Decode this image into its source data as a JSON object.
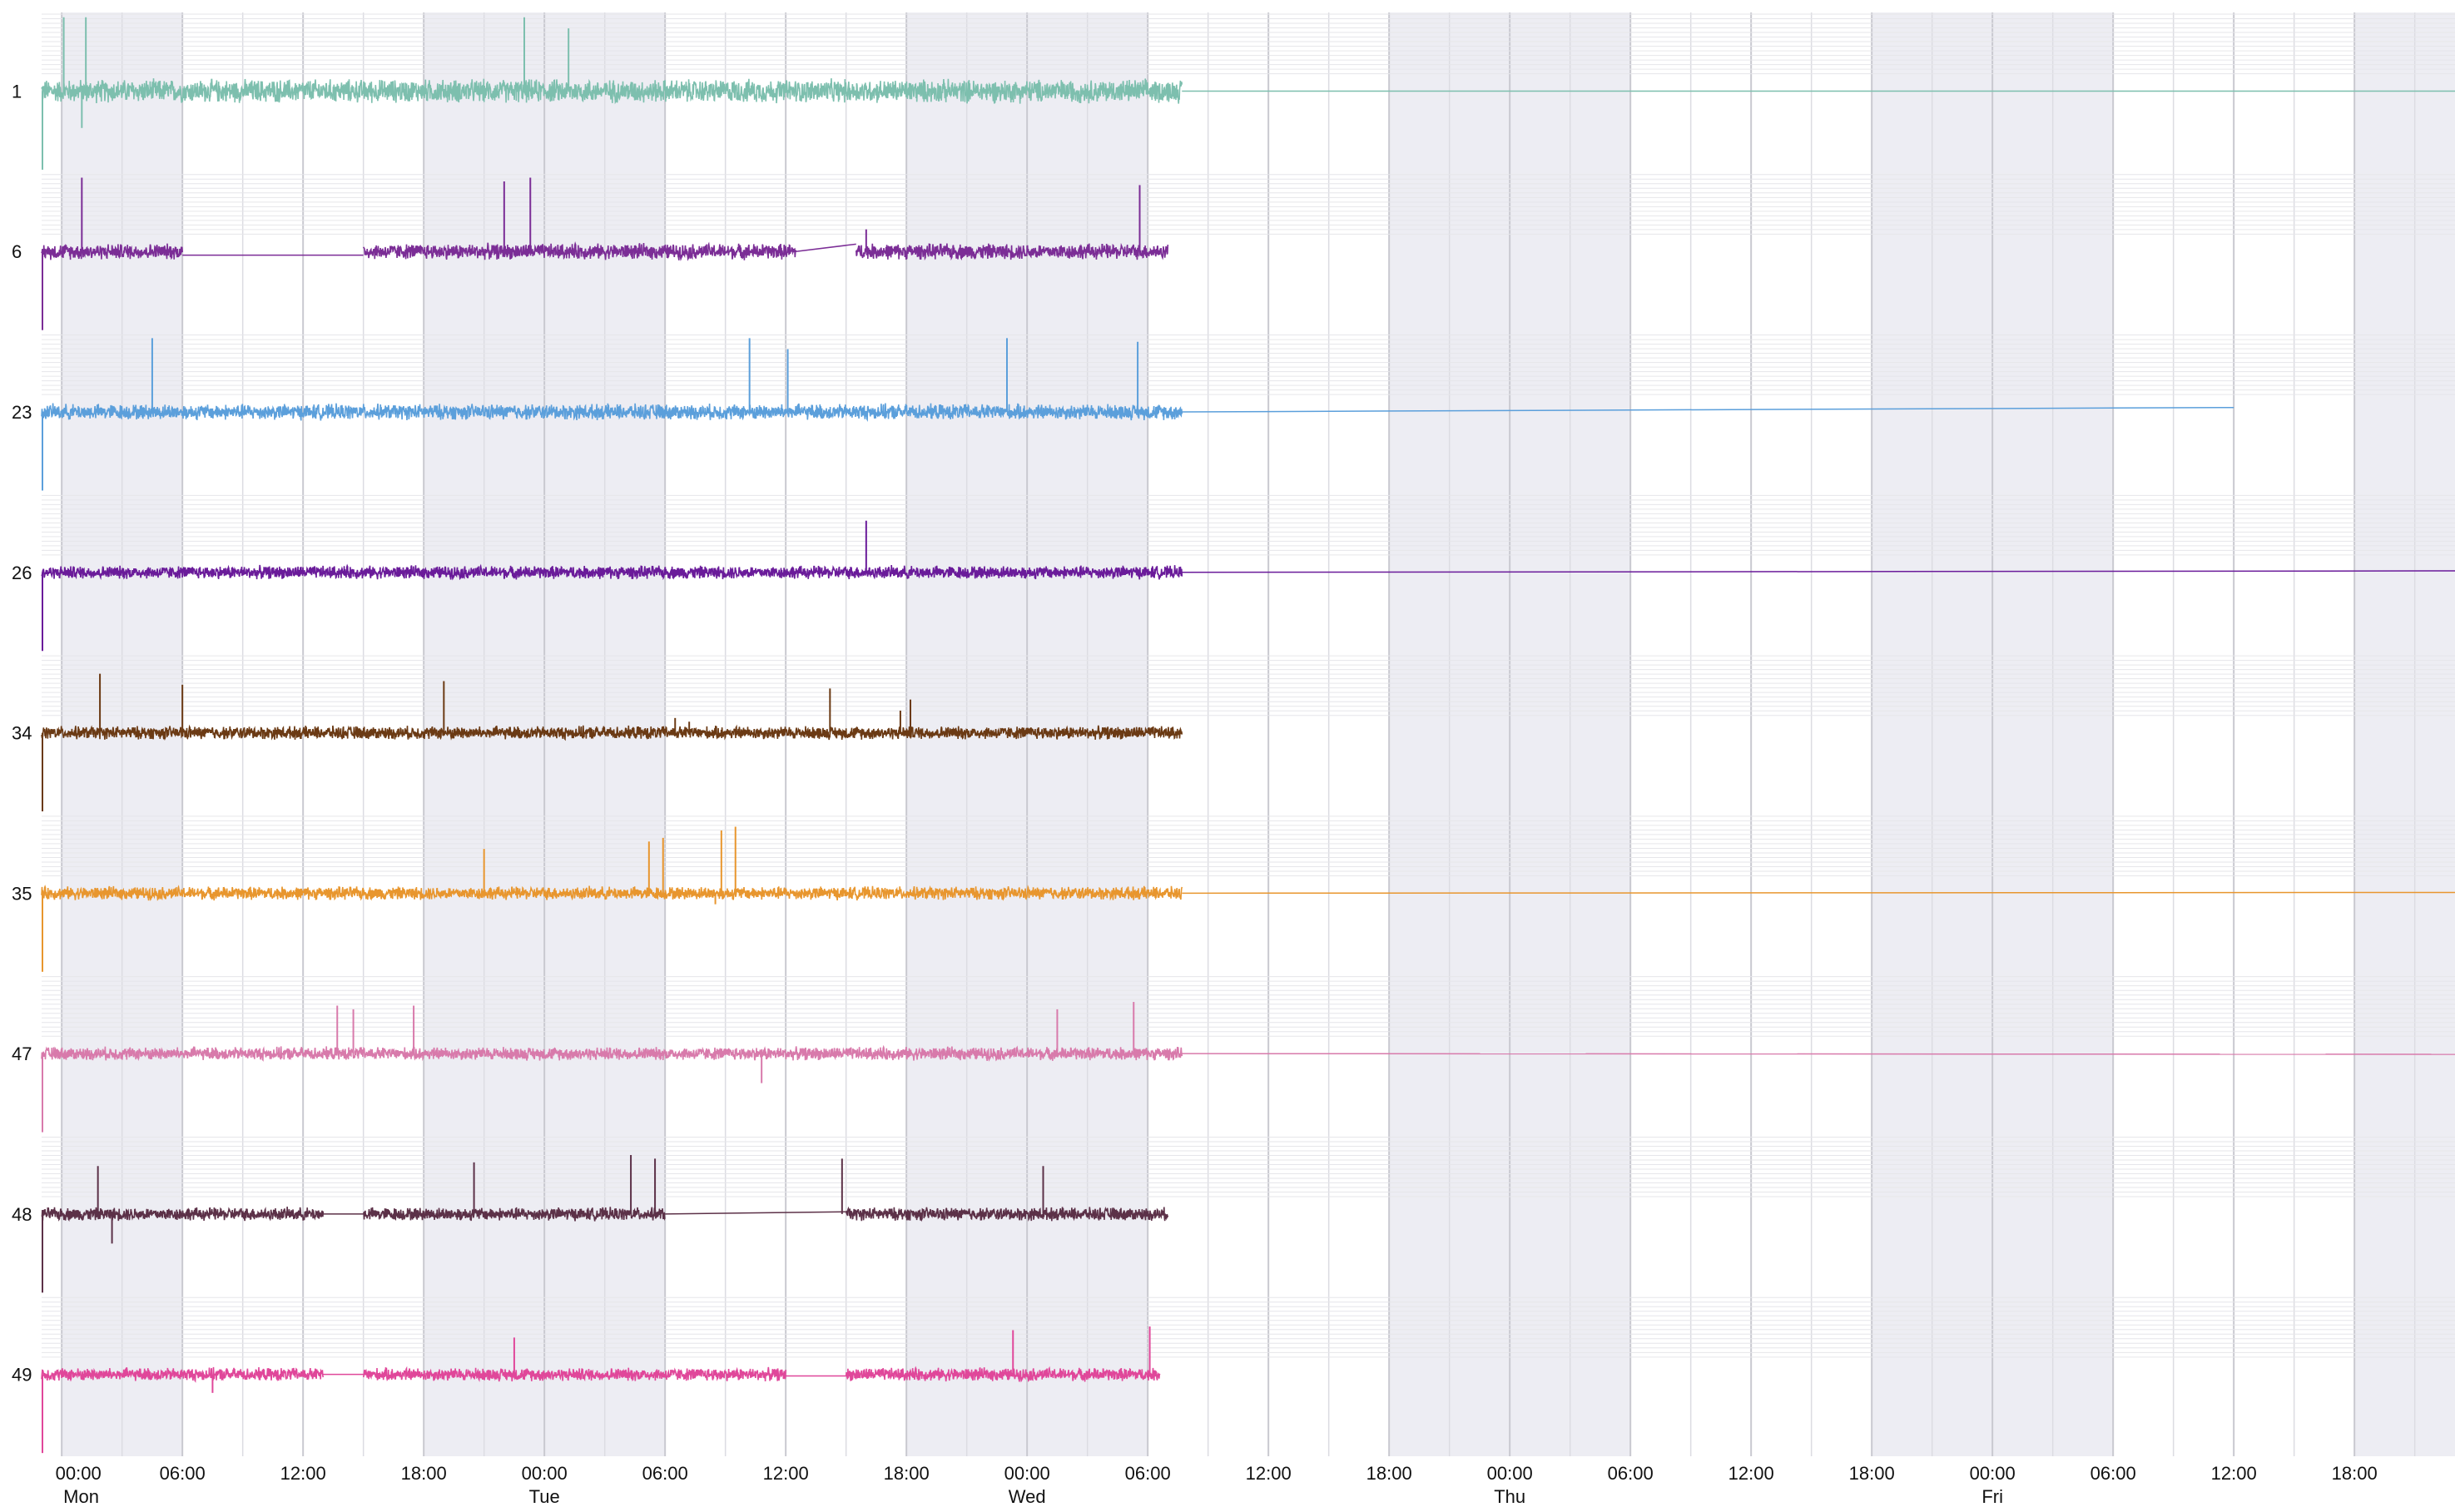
{
  "chart_data": {
    "type": "line",
    "x_range_hours": [
      -1,
      119
    ],
    "x_ticks": [
      {
        "h": 0,
        "time": "00:00",
        "day": "Mon"
      },
      {
        "h": 6,
        "time": "06:00",
        "day": ""
      },
      {
        "h": 12,
        "time": "12:00",
        "day": ""
      },
      {
        "h": 18,
        "time": "18:00",
        "day": ""
      },
      {
        "h": 24,
        "time": "00:00",
        "day": "Tue"
      },
      {
        "h": 30,
        "time": "06:00",
        "day": ""
      },
      {
        "h": 36,
        "time": "12:00",
        "day": ""
      },
      {
        "h": 42,
        "time": "18:00",
        "day": ""
      },
      {
        "h": 48,
        "time": "00:00",
        "day": "Wed"
      },
      {
        "h": 54,
        "time": "06:00",
        "day": ""
      },
      {
        "h": 60,
        "time": "12:00",
        "day": ""
      },
      {
        "h": 66,
        "time": "18:00",
        "day": ""
      },
      {
        "h": 72,
        "time": "00:00",
        "day": "Thu"
      },
      {
        "h": 78,
        "time": "06:00",
        "day": ""
      },
      {
        "h": 84,
        "time": "12:00",
        "day": ""
      },
      {
        "h": 90,
        "time": "18:00",
        "day": ""
      },
      {
        "h": 96,
        "time": "00:00",
        "day": "Fri"
      },
      {
        "h": 102,
        "time": "06:00",
        "day": ""
      },
      {
        "h": 108,
        "time": "12:00",
        "day": ""
      },
      {
        "h": 114,
        "time": "18:00",
        "day": ""
      }
    ],
    "night_bands_hours": [
      [
        0,
        6
      ],
      [
        18,
        30
      ],
      [
        42,
        54
      ],
      [
        66,
        78
      ],
      [
        90,
        102
      ],
      [
        114,
        119
      ]
    ],
    "grid": true,
    "series": [
      {
        "name": "1",
        "color": "#7dbfae",
        "noise": 0.18,
        "dense_end": 55.7,
        "segments": [
          [
            -1,
            55.7
          ]
        ],
        "gaps": [],
        "spikes": [
          [
            0.1,
            1.0
          ],
          [
            1.2,
            1.0
          ],
          [
            1.0,
            -0.5
          ],
          [
            23,
            1.0
          ],
          [
            25.2,
            0.85
          ]
        ],
        "tail": [
          55.7,
          119,
          0
        ]
      },
      {
        "name": "6",
        "color": "#7b2d96",
        "noise": 0.12,
        "dense_end": 55.0,
        "segments": [
          [
            -1,
            6
          ],
          [
            15,
            36.5
          ],
          [
            39.5,
            55
          ]
        ],
        "gaps": [
          [
            6,
            -0.05,
            15,
            -0.05
          ],
          [
            36.5,
            0.0,
            39.5,
            0.1
          ]
        ],
        "spikes": [
          [
            1,
            1.0
          ],
          [
            22,
            0.95
          ],
          [
            23.3,
            1.0
          ],
          [
            53.6,
            0.9
          ],
          [
            40,
            0.3
          ]
        ],
        "tail": null
      },
      {
        "name": "23",
        "color": "#5b9fdb",
        "noise": 0.12,
        "dense_end": 55.7,
        "segments": [
          [
            -1,
            55.7
          ]
        ],
        "gaps": [],
        "spikes": [
          [
            4.5,
            1.0
          ],
          [
            34.2,
            1.0
          ],
          [
            36.1,
            0.85
          ],
          [
            47,
            1.0
          ],
          [
            53.5,
            0.95
          ]
        ],
        "tail": [
          55.7,
          108,
          0.06
        ]
      },
      {
        "name": "26",
        "color": "#6a1b9a",
        "noise": 0.1,
        "dense_end": 55.7,
        "segments": [
          [
            -1,
            55.7
          ]
        ],
        "gaps": [],
        "spikes": [
          [
            40,
            0.7
          ]
        ],
        "tail": [
          55.7,
          119,
          0.02
        ]
      },
      {
        "name": "34",
        "color": "#6b3a14",
        "noise": 0.1,
        "dense_end": 55.7,
        "segments": [
          [
            -1,
            55.7
          ]
        ],
        "gaps": [],
        "spikes": [
          [
            1.9,
            0.8
          ],
          [
            6,
            0.65
          ],
          [
            19,
            0.7
          ],
          [
            38.2,
            0.6
          ],
          [
            42.2,
            0.45
          ],
          [
            41.7,
            0.3
          ],
          [
            30.5,
            0.2
          ],
          [
            31.2,
            0.15
          ]
        ],
        "tail": null
      },
      {
        "name": "35",
        "color": "#e8962e",
        "noise": 0.1,
        "dense_end": 55.7,
        "segments": [
          [
            -1,
            55.7
          ]
        ],
        "gaps": [],
        "spikes": [
          [
            21,
            0.6
          ],
          [
            29.2,
            0.7
          ],
          [
            29.9,
            0.75
          ],
          [
            32.8,
            0.85
          ],
          [
            33.5,
            0.9
          ],
          [
            32.5,
            -0.15
          ]
        ],
        "tail": [
          55.7,
          119,
          0.01
        ]
      },
      {
        "name": "47",
        "color": "#d87aab",
        "noise": 0.1,
        "dense_end": 55.7,
        "segments": [
          [
            -1,
            55.7
          ]
        ],
        "gaps": [],
        "spikes": [
          [
            13.7,
            0.65
          ],
          [
            14.5,
            0.6
          ],
          [
            17.5,
            0.65
          ],
          [
            49.5,
            0.6
          ],
          [
            53.3,
            0.7
          ],
          [
            34.8,
            -0.4
          ]
        ],
        "tail": [
          55.7,
          119,
          -0.01
        ]
      },
      {
        "name": "48",
        "color": "#5c3148",
        "noise": 0.1,
        "dense_end": 55.0,
        "segments": [
          [
            -1,
            13
          ],
          [
            15,
            30
          ],
          [
            39,
            55
          ]
        ],
        "gaps": [
          [
            13,
            0.0,
            15,
            0.0
          ],
          [
            30,
            0.0,
            39,
            0.03
          ]
        ],
        "spikes": [
          [
            1.8,
            0.65
          ],
          [
            2.5,
            -0.4
          ],
          [
            20.5,
            0.7
          ],
          [
            28.3,
            0.8
          ],
          [
            29.5,
            0.75
          ],
          [
            38.8,
            0.75
          ],
          [
            48.8,
            0.65
          ]
        ],
        "tail": null
      },
      {
        "name": "49",
        "color": "#e0479a",
        "noise": 0.1,
        "dense_end": 54.6,
        "segments": [
          [
            -1,
            13
          ],
          [
            15,
            36
          ],
          [
            39,
            54.6
          ]
        ],
        "gaps": [
          [
            13,
            0.0,
            15,
            0.0
          ],
          [
            36,
            -0.02,
            39,
            -0.02
          ]
        ],
        "spikes": [
          [
            7.5,
            -0.25
          ],
          [
            22.5,
            0.5
          ],
          [
            47.3,
            0.6
          ],
          [
            54.1,
            0.65
          ]
        ],
        "tail": null
      }
    ]
  }
}
